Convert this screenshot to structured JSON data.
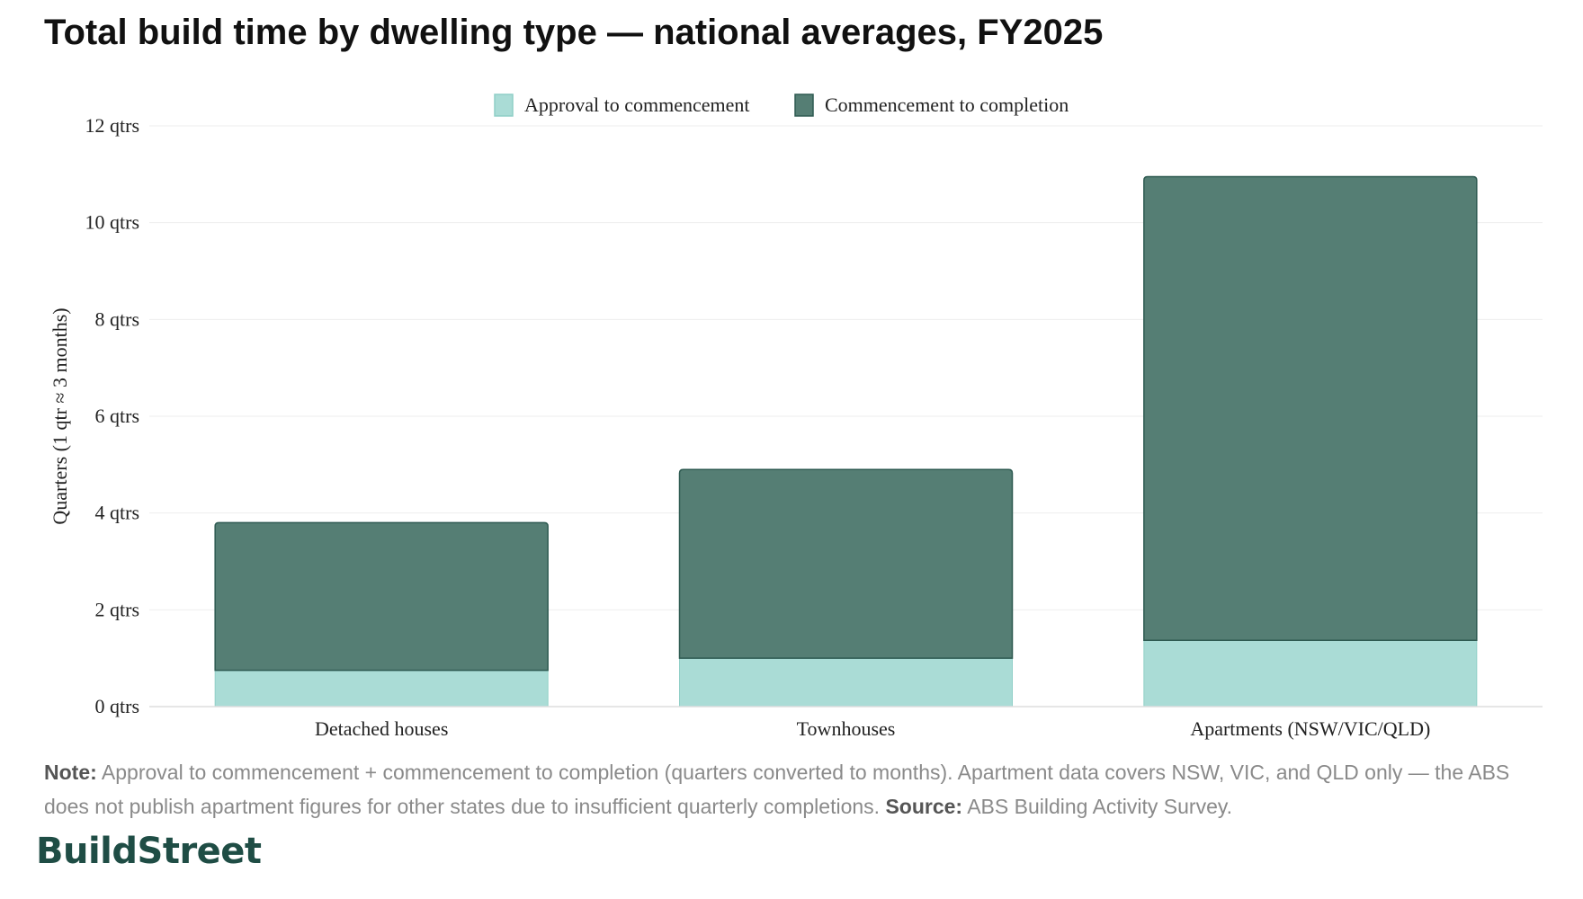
{
  "title": "Total build time by dwelling type — national averages, FY2025",
  "note": {
    "label": "Note:",
    "text": "Approval to commencement + commencement to completion (quarters converted to months). Apartment data covers NSW, VIC, and QLD only — the ABS does not publish apartment figures for other states due to insufficient quarterly completions.",
    "source_label": "Source:",
    "source_text": "ABS Building Activity Survey."
  },
  "brand": "BuildStreet",
  "chart_data": {
    "type": "bar",
    "stacked": true,
    "categories": [
      "Detached houses",
      "Townhouses",
      "Apartments (NSW/VIC/QLD)"
    ],
    "series": [
      {
        "name": "Approval to commencement",
        "values": [
          0.75,
          1.0,
          1.37
        ],
        "color": "#aadcd6"
      },
      {
        "name": "Commencement to completion",
        "values": [
          3.05,
          3.9,
          9.58
        ],
        "color": "#557e74"
      }
    ],
    "ylabel": "Quarters (1 qtr ≈ 3 months)",
    "ylim": [
      0,
      12
    ],
    "yticks": [
      0,
      2,
      4,
      6,
      8,
      10,
      12
    ],
    "ytick_suffix": " qtrs",
    "grid": true,
    "legend": "top-center"
  }
}
